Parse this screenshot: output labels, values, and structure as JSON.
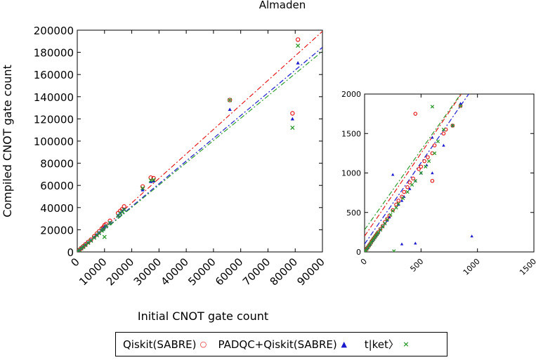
{
  "chart_data": [
    {
      "type": "scatter",
      "title": "Almaden",
      "xlabel": "Initial CNOT gate count",
      "ylabel": "Compiled  CNOT gate count",
      "xlim": [
        0,
        90000
      ],
      "ylim": [
        0,
        200000
      ],
      "xticks": [
        "0",
        "10000",
        "20000",
        "30000",
        "40000",
        "50000",
        "60000",
        "70000",
        "80000",
        "90000"
      ],
      "yticks": [
        "0",
        "20000",
        "40000",
        "60000",
        "80000",
        "100000",
        "120000",
        "140000",
        "160000",
        "180000",
        "200000"
      ],
      "series": [
        {
          "name": "Qiskit(SABRE)",
          "color": "#e41a1c",
          "marker": "circle",
          "fit_line": {
            "slope": 2.21,
            "intercept": 0
          },
          "x": [
            300,
            800,
            1500,
            2200,
            3000,
            4000,
            5000,
            6200,
            7200,
            8000,
            9000,
            9500,
            10000,
            10500,
            12000,
            15000,
            15800,
            16500,
            17200,
            24000,
            27000,
            28000,
            56000,
            79000,
            81000
          ],
          "y": [
            700,
            1800,
            3500,
            5000,
            6800,
            9000,
            11000,
            14000,
            16500,
            18500,
            21000,
            22000,
            24000,
            25000,
            28000,
            35000,
            37000,
            38500,
            41000,
            59000,
            67000,
            66500,
            137000,
            125000,
            191500
          ]
        },
        {
          "name": "PADQC+Qiskit(SABRE)",
          "color": "#1a1acd",
          "marker": "triangle",
          "fit_line": {
            "slope": 2.05,
            "intercept": 0
          },
          "x": [
            300,
            800,
            1500,
            2200,
            3000,
            4000,
            5000,
            6200,
            7200,
            8000,
            9000,
            9500,
            10000,
            10500,
            12000,
            15000,
            15800,
            16500,
            17200,
            24000,
            27000,
            28000,
            56000,
            79000,
            81000
          ],
          "y": [
            650,
            1700,
            3300,
            4700,
            6400,
            8500,
            10500,
            13200,
            15500,
            17500,
            19800,
            21000,
            22500,
            23500,
            26500,
            33000,
            35000,
            36500,
            38500,
            56000,
            63500,
            64000,
            128500,
            120000,
            170500
          ]
        },
        {
          "name": "t|ket〉",
          "color": "#2e9a2e",
          "marker": "x",
          "fit_line": {
            "slope": 2.01,
            "intercept": 0
          },
          "x": [
            300,
            800,
            1500,
            2200,
            3000,
            4000,
            5000,
            6200,
            7200,
            8000,
            9000,
            9500,
            10000,
            10500,
            12000,
            15000,
            15800,
            16500,
            17200,
            24000,
            27000,
            28000,
            56000,
            79000,
            81000
          ],
          "y": [
            620,
            1650,
            3200,
            4500,
            6200,
            8200,
            10200,
            12800,
            15000,
            17000,
            19200,
            20500,
            13500,
            23000,
            26000,
            32500,
            34500,
            36000,
            38000,
            57500,
            64500,
            65000,
            137000,
            112000,
            186000
          ]
        }
      ]
    },
    {
      "type": "scatter",
      "title": "",
      "xlabel": "",
      "ylabel": "",
      "xlim": [
        0,
        1500
      ],
      "ylim": [
        0,
        2000
      ],
      "xticks": [
        "0",
        "500",
        "1000",
        "1500"
      ],
      "yticks": [
        "0",
        "500",
        "1000",
        "1500",
        "2000"
      ],
      "series": [
        {
          "name": "Qiskit(SABRE)",
          "color": "#e41a1c",
          "marker": "circle",
          "fit_line": {
            "slope": 2.1,
            "intercept": 200
          },
          "x": [
            5,
            10,
            20,
            30,
            40,
            50,
            60,
            70,
            80,
            90,
            100,
            110,
            120,
            140,
            160,
            180,
            200,
            220,
            250,
            280,
            300,
            330,
            350,
            380,
            400,
            430,
            450,
            480,
            500,
            530,
            560,
            600,
            600,
            620,
            700,
            720,
            780,
            850
          ],
          "y": [
            10,
            20,
            45,
            60,
            85,
            100,
            130,
            150,
            170,
            190,
            210,
            230,
            250,
            290,
            330,
            380,
            420,
            460,
            530,
            600,
            650,
            700,
            760,
            820,
            880,
            930,
            1750,
            1050,
            1080,
            1150,
            1200,
            1250,
            900,
            1350,
            1500,
            1550,
            1600,
            1850
          ]
        },
        {
          "name": "PADQC+Qiskit(SABRE)",
          "color": "#1a1acd",
          "marker": "triangle",
          "fit_line": {
            "slope": 2.06,
            "intercept": 100
          },
          "x": [
            5,
            10,
            20,
            30,
            40,
            50,
            60,
            70,
            80,
            90,
            100,
            110,
            120,
            140,
            160,
            180,
            200,
            220,
            250,
            300,
            330,
            350,
            400,
            450,
            500,
            550,
            600,
            600,
            700,
            780,
            850,
            950,
            330,
            450
          ],
          "y": [
            10,
            20,
            40,
            55,
            80,
            95,
            120,
            140,
            160,
            180,
            200,
            220,
            240,
            280,
            320,
            360,
            400,
            440,
            980,
            600,
            650,
            700,
            800,
            900,
            1000,
            1100,
            1000,
            1450,
            1350,
            1600,
            1880,
            200,
            100,
            110
          ]
        },
        {
          "name": "t|ket〉",
          "color": "#2e9a2e",
          "marker": "x",
          "fit_line": {
            "slope": 2.02,
            "intercept": 280
          },
          "x": [
            5,
            10,
            20,
            30,
            40,
            50,
            60,
            70,
            80,
            90,
            100,
            110,
            120,
            140,
            160,
            180,
            200,
            230,
            250,
            280,
            300,
            340,
            380,
            420,
            450,
            500,
            540,
            570,
            600,
            620,
            650,
            700,
            780,
            850,
            260
          ],
          "y": [
            10,
            20,
            40,
            60,
            80,
            100,
            125,
            145,
            165,
            185,
            205,
            225,
            245,
            280,
            320,
            360,
            410,
            470,
            520,
            560,
            610,
            680,
            760,
            850,
            900,
            1000,
            1080,
            1150,
            1840,
            1250,
            1400,
            1550,
            1600,
            1850,
            10
          ]
        }
      ]
    }
  ]
}
